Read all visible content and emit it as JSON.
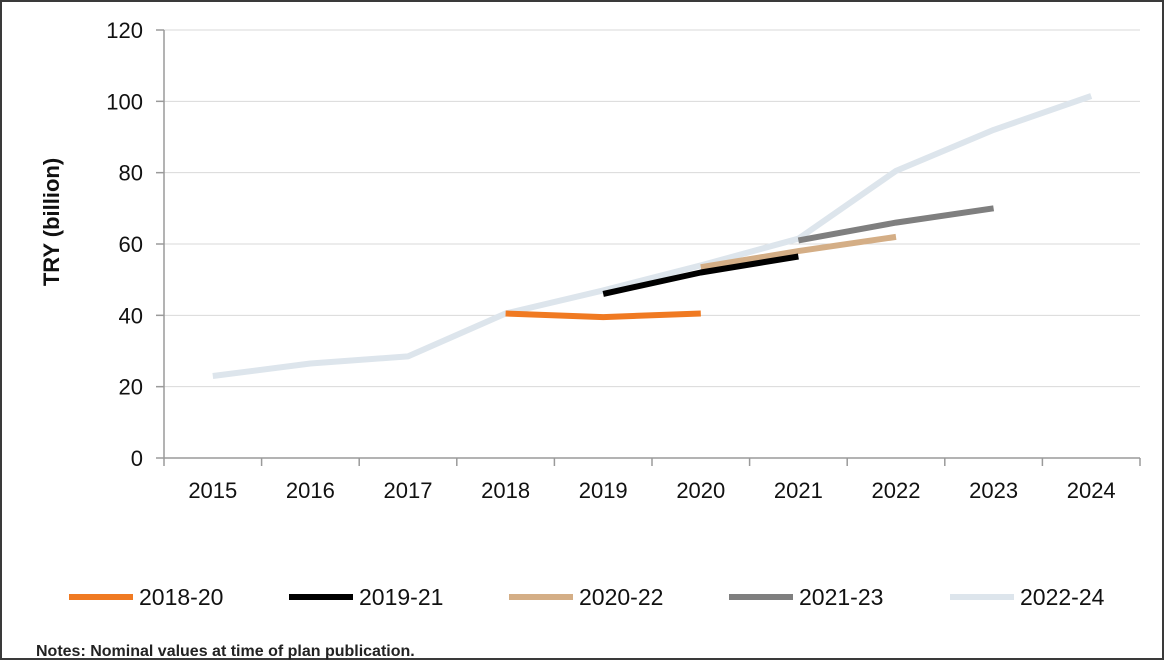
{
  "chart_data": {
    "type": "line",
    "title": "",
    "xlabel": "",
    "ylabel": "TRY (billion)",
    "ylim": [
      0,
      120
    ],
    "yticks": [
      0,
      20,
      40,
      60,
      80,
      100,
      120
    ],
    "categories": [
      "2015",
      "2016",
      "2017",
      "2018",
      "2019",
      "2020",
      "2021",
      "2022",
      "2023",
      "2024"
    ],
    "grid": "horizontal",
    "legend_position": "bottom",
    "series": [
      {
        "name": "2018-20",
        "color": "#F07A22",
        "values": [
          null,
          null,
          null,
          40.5,
          39.5,
          40.5,
          null,
          null,
          null,
          null
        ]
      },
      {
        "name": "2019-21",
        "color": "#000000",
        "values": [
          null,
          null,
          null,
          null,
          46,
          52,
          56.5,
          null,
          null,
          null
        ]
      },
      {
        "name": "2020-22",
        "color": "#D4AE86",
        "values": [
          null,
          null,
          null,
          null,
          null,
          53.5,
          58,
          62,
          null,
          null
        ]
      },
      {
        "name": "2021-23",
        "color": "#7F7F7F",
        "values": [
          null,
          null,
          null,
          null,
          null,
          null,
          61,
          66,
          70,
          null
        ]
      },
      {
        "name": "2022-24",
        "color": "#DDE5EC",
        "values": [
          23,
          26.5,
          28.5,
          40.5,
          47,
          54,
          61.5,
          80.5,
          92,
          101.5
        ]
      }
    ]
  },
  "footnote": "Notes: Nominal values at time of plan publication."
}
